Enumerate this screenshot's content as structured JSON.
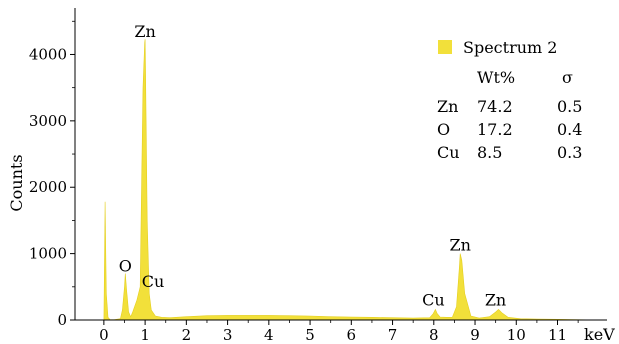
{
  "chart_data": {
    "type": "area",
    "xlabel": "keV",
    "ylabel": "Counts",
    "xlim": [
      -0.7,
      12.2
    ],
    "ylim": [
      0,
      4700
    ],
    "x_ticks": [
      0,
      1,
      2,
      3,
      4,
      5,
      6,
      7,
      8,
      9,
      10,
      11
    ],
    "y_ticks": [
      0,
      1000,
      2000,
      3000,
      4000
    ],
    "grid": false,
    "legend_position": "top-right",
    "series": [
      {
        "name": "Spectrum 2",
        "color": "#f2e03a",
        "x": [
          -0.6,
          -0.1,
          0.0,
          0.03,
          0.06,
          0.1,
          0.15,
          0.25,
          0.4,
          0.45,
          0.5,
          0.52,
          0.55,
          0.6,
          0.65,
          0.7,
          0.8,
          0.88,
          0.9,
          0.95,
          0.99,
          1.0,
          1.01,
          1.05,
          1.1,
          1.15,
          1.25,
          1.4,
          1.6,
          2.0,
          2.5,
          3.0,
          3.5,
          4.0,
          4.5,
          5.0,
          5.5,
          6.0,
          6.5,
          7.0,
          7.5,
          7.9,
          7.98,
          8.04,
          8.08,
          8.15,
          8.3,
          8.45,
          8.55,
          8.62,
          8.64,
          8.68,
          8.75,
          8.9,
          9.1,
          9.35,
          9.5,
          9.57,
          9.65,
          9.8,
          10.1,
          10.5,
          11.0,
          11.5,
          12.1
        ],
        "y": [
          0,
          0,
          0,
          1780,
          400,
          40,
          5,
          5,
          20,
          150,
          500,
          700,
          450,
          120,
          50,
          120,
          300,
          500,
          1400,
          3500,
          4180,
          4230,
          3800,
          1500,
          400,
          150,
          60,
          40,
          35,
          50,
          65,
          70,
          70,
          70,
          65,
          60,
          50,
          45,
          40,
          35,
          30,
          35,
          90,
          160,
          100,
          45,
          40,
          40,
          200,
          800,
          1000,
          900,
          400,
          60,
          30,
          50,
          120,
          160,
          110,
          40,
          20,
          15,
          10,
          5,
          0
        ],
        "annotations": [
          {
            "label": "Zn",
            "x": 1.0,
            "y": 4230
          },
          {
            "label": "O",
            "x": 0.52,
            "y": 700
          },
          {
            "label": "Cu",
            "x": 0.95,
            "y": 500
          },
          {
            "label": "Cu",
            "x": 8.04,
            "y": 160
          },
          {
            "label": "Zn",
            "x": 8.64,
            "y": 1000
          },
          {
            "label": "Zn",
            "x": 9.57,
            "y": 160
          }
        ]
      }
    ],
    "table": {
      "headers": [
        "",
        "Wt%",
        "σ"
      ],
      "rows": [
        [
          "Zn",
          "74.2",
          "0.5"
        ],
        [
          "O",
          "17.2",
          "0.4"
        ],
        [
          "Cu",
          "8.5",
          "0.3"
        ]
      ]
    }
  }
}
